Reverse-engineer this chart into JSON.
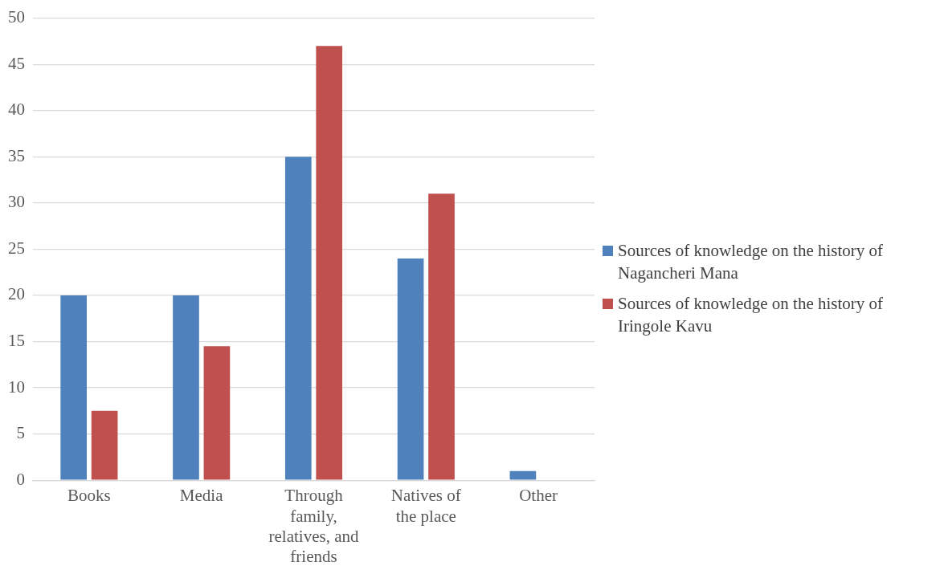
{
  "chart_data": {
    "type": "bar",
    "categories": [
      "Books",
      "Media",
      "Through family, relatives, and friends",
      "Natives of the place",
      "Other"
    ],
    "series": [
      {
        "name": "Sources of knowledge on the history of Nagancheri Mana",
        "color": "#4f81bd",
        "values": [
          20,
          20,
          35,
          24,
          1
        ]
      },
      {
        "name": "Sources of knowledge on the history of Iringole Kavu",
        "color": "#c0504d",
        "values": [
          7.5,
          14.5,
          47,
          31,
          0
        ]
      }
    ],
    "ylim": [
      0,
      50
    ],
    "yticks": [
      0,
      5,
      10,
      15,
      20,
      25,
      30,
      35,
      40,
      45,
      50
    ],
    "grid": "y",
    "legend": "right"
  }
}
